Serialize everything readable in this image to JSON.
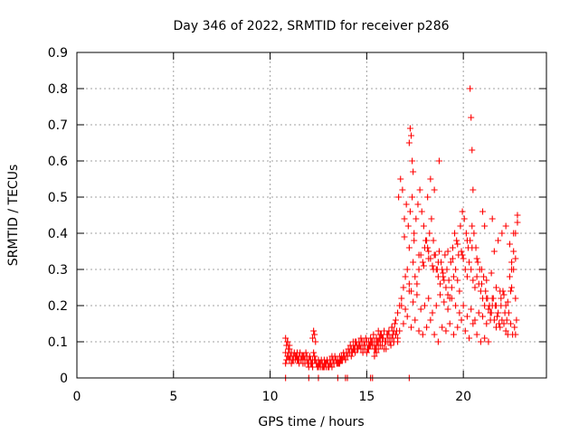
{
  "chart_data": {
    "type": "scatter",
    "title": "Day 346 of 2022, SRMTID for receiver p286",
    "xlabel": "GPS time / hours",
    "ylabel": "SRMTID / TECUs",
    "xlim": [
      0,
      24.3
    ],
    "ylim": [
      0,
      0.9
    ],
    "x_ticks": [
      0,
      5,
      10,
      15,
      20
    ],
    "x_tick_labels": [
      "0",
      "5",
      "10",
      "15",
      "20"
    ],
    "y_ticks": [
      0,
      0.1,
      0.2,
      0.3,
      0.4,
      0.5,
      0.6,
      0.7,
      0.8,
      0.9
    ],
    "y_tick_labels": [
      "0",
      "0.1",
      "0.2",
      "0.3",
      "0.4",
      "0.5",
      "0.6",
      "0.7",
      "0.8",
      "0.9"
    ],
    "grid": true,
    "marker": "+",
    "color": "#ff0000",
    "series": [
      {
        "name": "SRMTID",
        "x": [
          10.8,
          10.85,
          10.9,
          10.95,
          11.0,
          11.05,
          11.1,
          11.15,
          11.2,
          11.25,
          11.3,
          11.35,
          11.4,
          11.45,
          11.5,
          11.55,
          11.6,
          11.65,
          11.7,
          11.75,
          11.8,
          11.85,
          11.9,
          11.95,
          12.0,
          12.05,
          12.1,
          12.15,
          12.2,
          12.25,
          12.3,
          12.35,
          12.4,
          12.45,
          12.5,
          12.55,
          12.6,
          12.65,
          12.7,
          12.75,
          12.8,
          12.85,
          12.9,
          12.95,
          13.0,
          13.05,
          13.1,
          13.15,
          13.2,
          13.25,
          13.3,
          13.35,
          13.4,
          13.45,
          13.5,
          13.55,
          13.6,
          13.65,
          13.7,
          13.75,
          13.8,
          13.85,
          13.9,
          13.95,
          14.0,
          14.05,
          14.1,
          14.15,
          14.2,
          14.25,
          14.3,
          14.35,
          14.4,
          14.45,
          14.5,
          14.55,
          14.6,
          14.65,
          14.7,
          14.75,
          14.8,
          14.85,
          14.9,
          14.95,
          15.0,
          15.05,
          15.1,
          15.15,
          15.2,
          15.25,
          15.3,
          15.35,
          15.4,
          15.45,
          15.5,
          15.55,
          15.6,
          15.65,
          15.7,
          15.75,
          15.8,
          15.85,
          15.9,
          15.95,
          16.0,
          16.05,
          16.1,
          16.15,
          16.2,
          16.25,
          16.3,
          16.35,
          16.4,
          16.45,
          16.5,
          16.55,
          16.6,
          10.8,
          10.9,
          11.0,
          11.1,
          11.2,
          11.3,
          11.4,
          11.5,
          11.6,
          11.7,
          11.8,
          11.9,
          12.0,
          12.1,
          12.2,
          12.3,
          12.4,
          12.5,
          12.6,
          12.7,
          12.8,
          12.9,
          13.0,
          13.1,
          13.2,
          13.3,
          13.4,
          13.5,
          13.6,
          13.7,
          13.8,
          13.9,
          14.0,
          14.1,
          14.2,
          14.3,
          14.4,
          14.5,
          14.6,
          14.7,
          14.8,
          14.9,
          15.0,
          15.1,
          15.2,
          15.3,
          15.4,
          15.5,
          15.6,
          15.7,
          15.8,
          15.9,
          16.0,
          16.1,
          16.2,
          16.3,
          16.4,
          16.5,
          16.6,
          10.8,
          10.85,
          10.9,
          10.95,
          11.0,
          12.2,
          12.25,
          12.3,
          12.35,
          14.3,
          14.4,
          15.4,
          15.5,
          15.6,
          15.7,
          16.3,
          16.4,
          16.5,
          16.6,
          16.7,
          16.8,
          16.9,
          17.0,
          17.1,
          17.2,
          17.3,
          17.4,
          17.5,
          17.6,
          17.7,
          17.8,
          17.9,
          18.0,
          18.1,
          18.2,
          18.3,
          18.4,
          18.5,
          18.6,
          18.7,
          18.8,
          18.9,
          19.0,
          19.1,
          19.2,
          19.3,
          19.4,
          19.5,
          19.6,
          19.7,
          19.8,
          19.9,
          20.0,
          20.1,
          20.2,
          20.3,
          20.4,
          20.5,
          20.6,
          20.7,
          20.8,
          20.9,
          21.0,
          21.1,
          21.2,
          21.3,
          21.4,
          21.5,
          21.6,
          21.7,
          21.8,
          21.9,
          22.0,
          22.1,
          22.2,
          22.3,
          22.4,
          22.5,
          22.6,
          22.7,
          22.8,
          16.65,
          16.75,
          16.85,
          16.95,
          17.05,
          17.15,
          17.25,
          17.35,
          17.45,
          17.55,
          17.65,
          17.75,
          17.85,
          17.95,
          18.05,
          18.15,
          18.25,
          18.35,
          18.45,
          18.55,
          18.65,
          18.75,
          18.85,
          18.95,
          19.05,
          19.15,
          19.25,
          19.35,
          19.45,
          19.55,
          19.65,
          19.75,
          19.85,
          19.95,
          20.05,
          20.15,
          20.25,
          20.35,
          20.45,
          20.55,
          20.65,
          20.75,
          20.85,
          20.95,
          21.05,
          21.15,
          21.25,
          21.35,
          21.45,
          21.55,
          21.65,
          21.75,
          21.85,
          21.95,
          22.05,
          22.15,
          22.25,
          22.35,
          22.45,
          22.55,
          22.65,
          22.75,
          16.7,
          16.9,
          17.1,
          17.3,
          17.5,
          17.7,
          17.9,
          18.1,
          18.3,
          18.5,
          18.7,
          18.9,
          19.1,
          19.3,
          19.5,
          19.7,
          19.9,
          20.1,
          20.3,
          20.5,
          20.7,
          20.9,
          21.1,
          21.3,
          21.5,
          21.7,
          21.9,
          22.1,
          22.3,
          22.5,
          22.7,
          16.8,
          17.0,
          17.2,
          17.4,
          17.6,
          17.8,
          18.0,
          18.2,
          18.4,
          18.6,
          18.8,
          19.0,
          19.2,
          19.4,
          19.6,
          19.8,
          20.0,
          20.2,
          20.4,
          20.6,
          20.8,
          21.0,
          21.2,
          21.4,
          21.6,
          21.8,
          22.0,
          22.2,
          22.4,
          22.6,
          22.8,
          16.95,
          17.2,
          17.45,
          17.7,
          17.95,
          18.2,
          18.45,
          18.7,
          18.95,
          19.2,
          19.45,
          19.7,
          19.95,
          20.2,
          20.45,
          20.7,
          20.95,
          21.2,
          21.45,
          21.7,
          21.95,
          22.2,
          22.45,
          22.7,
          17.2,
          17.25,
          17.3,
          17.35,
          17.4,
          18.15,
          18.3,
          18.5,
          18.75,
          20.35,
          20.4,
          20.45,
          20.5,
          21.0,
          21.1,
          21.5,
          22.5,
          22.6,
          22.7,
          10.8,
          12.0,
          12.5,
          13.5,
          13.9,
          14.0,
          15.2,
          15.3,
          17.2
        ],
        "y": [
          0.07,
          0.05,
          0.1,
          0.06,
          0.08,
          0.06,
          0.07,
          0.05,
          0.06,
          0.07,
          0.05,
          0.06,
          0.07,
          0.05,
          0.06,
          0.07,
          0.05,
          0.06,
          0.04,
          0.06,
          0.05,
          0.07,
          0.06,
          0.04,
          0.05,
          0.06,
          0.05,
          0.04,
          0.05,
          0.07,
          0.06,
          0.05,
          0.04,
          0.03,
          0.05,
          0.04,
          0.03,
          0.05,
          0.04,
          0.03,
          0.05,
          0.04,
          0.03,
          0.05,
          0.04,
          0.03,
          0.05,
          0.04,
          0.06,
          0.05,
          0.04,
          0.06,
          0.05,
          0.04,
          0.05,
          0.04,
          0.06,
          0.05,
          0.06,
          0.05,
          0.07,
          0.06,
          0.05,
          0.07,
          0.06,
          0.08,
          0.07,
          0.09,
          0.08,
          0.07,
          0.1,
          0.08,
          0.09,
          0.1,
          0.09,
          0.08,
          0.1,
          0.09,
          0.11,
          0.1,
          0.08,
          0.1,
          0.09,
          0.11,
          0.1,
          0.08,
          0.1,
          0.09,
          0.11,
          0.1,
          0.09,
          0.12,
          0.1,
          0.08,
          0.11,
          0.1,
          0.13,
          0.11,
          0.1,
          0.12,
          0.09,
          0.11,
          0.13,
          0.1,
          0.08,
          0.12,
          0.1,
          0.13,
          0.11,
          0.09,
          0.14,
          0.12,
          0.1,
          0.15,
          0.12,
          0.13,
          0.11,
          0.04,
          0.06,
          0.05,
          0.04,
          0.05,
          0.06,
          0.05,
          0.04,
          0.05,
          0.06,
          0.04,
          0.05,
          0.03,
          0.04,
          0.03,
          0.05,
          0.04,
          0.03,
          0.04,
          0.03,
          0.03,
          0.04,
          0.03,
          0.04,
          0.03,
          0.04,
          0.05,
          0.04,
          0.04,
          0.05,
          0.06,
          0.05,
          0.06,
          0.07,
          0.06,
          0.08,
          0.07,
          0.08,
          0.09,
          0.08,
          0.07,
          0.08,
          0.07,
          0.08,
          0.09,
          0.1,
          0.08,
          0.09,
          0.1,
          0.09,
          0.11,
          0.08,
          0.1,
          0.12,
          0.1,
          0.11,
          0.13,
          0.12,
          0.1,
          0.11,
          0.09,
          0.1,
          0.08,
          0.09,
          0.11,
          0.13,
          0.12,
          0.1,
          0.08,
          0.1,
          0.06,
          0.07,
          0.08,
          0.12,
          0.14,
          0.1,
          0.16,
          0.18,
          0.2,
          0.22,
          0.25,
          0.28,
          0.3,
          0.26,
          0.24,
          0.32,
          0.28,
          0.26,
          0.3,
          0.34,
          0.32,
          0.36,
          0.38,
          0.35,
          0.33,
          0.31,
          0.34,
          0.3,
          0.28,
          0.26,
          0.3,
          0.27,
          0.25,
          0.23,
          0.22,
          0.25,
          0.28,
          0.3,
          0.27,
          0.24,
          0.35,
          0.33,
          0.3,
          0.28,
          0.32,
          0.3,
          0.27,
          0.25,
          0.28,
          0.26,
          0.24,
          0.22,
          0.2,
          0.22,
          0.19,
          0.18,
          0.2,
          0.16,
          0.14,
          0.18,
          0.14,
          0.16,
          0.15,
          0.13,
          0.12,
          0.28,
          0.3,
          0.35,
          0.4,
          0.45,
          0.5,
          0.55,
          0.52,
          0.44,
          0.48,
          0.42,
          0.46,
          0.5,
          0.4,
          0.44,
          0.48,
          0.52,
          0.46,
          0.42,
          0.38,
          0.36,
          0.4,
          0.44,
          0.38,
          0.34,
          0.3,
          0.35,
          0.32,
          0.28,
          0.34,
          0.3,
          0.27,
          0.32,
          0.36,
          0.4,
          0.38,
          0.34,
          0.42,
          0.46,
          0.44,
          0.4,
          0.36,
          0.38,
          0.42,
          0.4,
          0.36,
          0.32,
          0.3,
          0.26,
          0.28,
          0.24,
          0.22,
          0.2,
          0.18,
          0.22,
          0.2,
          0.17,
          0.15,
          0.2,
          0.24,
          0.18,
          0.16,
          0.18,
          0.15,
          0.12,
          0.14,
          0.16,
          0.13,
          0.15,
          0.17,
          0.14,
          0.16,
          0.13,
          0.12,
          0.14,
          0.16,
          0.12,
          0.1,
          0.14,
          0.13,
          0.15,
          0.12,
          0.14,
          0.16,
          0.13,
          0.11,
          0.15,
          0.12,
          0.1,
          0.11,
          0.1,
          0.22,
          0.2,
          0.24,
          0.23,
          0.21,
          0.25,
          0.22,
          0.2,
          0.19,
          0.24,
          0.21,
          0.23,
          0.19,
          0.2,
          0.22,
          0.18,
          0.2,
          0.23,
          0.21,
          0.19,
          0.22,
          0.2,
          0.18,
          0.2,
          0.17,
          0.19,
          0.16,
          0.18,
          0.17,
          0.15,
          0.16,
          0.35,
          0.38,
          0.4,
          0.42,
          0.37,
          0.4,
          0.43,
          0.39,
          0.36,
          0.38,
          0.34,
          0.31,
          0.33,
          0.3,
          0.32,
          0.29,
          0.35,
          0.33,
          0.37,
          0.34,
          0.38,
          0.36,
          0.33,
          0.3,
          0.27,
          0.29,
          0.25,
          0.22,
          0.2,
          0.24,
          0.12,
          0.65,
          0.69,
          0.67,
          0.6,
          0.57,
          0.5,
          0.55,
          0.52,
          0.6,
          0.8,
          0.72,
          0.63,
          0.52,
          0.46,
          0.42,
          0.44,
          0.32,
          0.3,
          0.33,
          0.0,
          0.0,
          0.0,
          0.0,
          0.0,
          0.0,
          0.0,
          0.0,
          0.0
        ]
      }
    ]
  }
}
